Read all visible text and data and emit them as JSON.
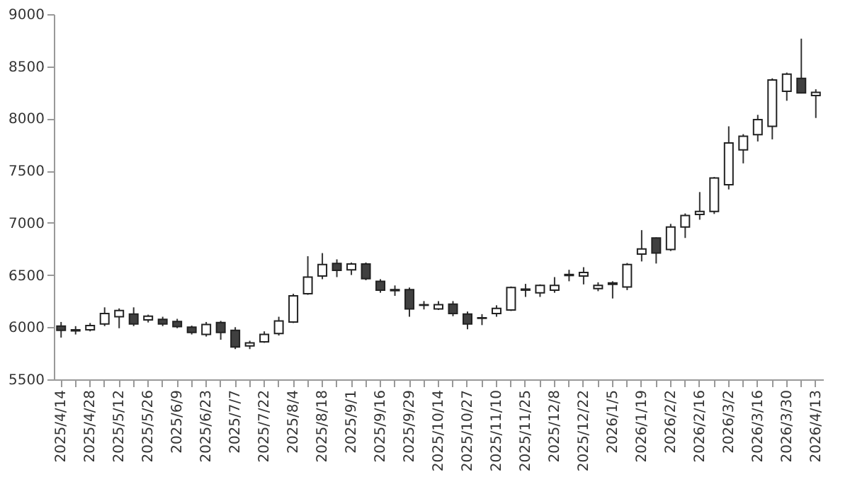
{
  "chart_data": {
    "type": "candlestick",
    "categories": [
      "2025/4/14",
      null,
      "2025/4/28",
      null,
      "2025/5/12",
      null,
      "2025/5/26",
      null,
      "2025/6/9",
      null,
      "2025/6/23",
      null,
      "2025/7/7",
      null,
      "2025/7/22",
      null,
      "2025/8/4",
      null,
      "2025/8/18",
      null,
      "2025/9/1",
      null,
      "2025/9/16",
      null,
      "2025/9/29",
      null,
      "2025/10/14",
      null,
      "2025/10/27",
      null,
      "2025/11/10",
      null,
      "2025/11/25",
      null,
      "2025/12/8",
      null,
      "2025/12/22",
      null,
      "2026/1/5",
      null,
      "2026/1/19",
      null,
      "2026/2/2",
      null,
      "2026/2/16",
      null,
      "2026/3/2",
      null,
      "2026/3/16",
      null,
      "2026/3/30",
      null,
      "2026/4/13"
    ],
    "ohlc": [
      [
        6010,
        6050,
        5900,
        5970
      ],
      [
        5975,
        6010,
        5930,
        5965
      ],
      [
        5975,
        6040,
        5960,
        6015
      ],
      [
        6030,
        6190,
        6010,
        6130
      ],
      [
        6100,
        6180,
        5990,
        6160
      ],
      [
        6125,
        6190,
        6010,
        6030
      ],
      [
        6070,
        6120,
        6045,
        6105
      ],
      [
        6075,
        6100,
        6010,
        6030
      ],
      [
        6055,
        6080,
        5990,
        6005
      ],
      [
        6000,
        6015,
        5930,
        5950
      ],
      [
        5930,
        6050,
        5910,
        6025
      ],
      [
        6045,
        6060,
        5880,
        5950
      ],
      [
        5970,
        6000,
        5790,
        5810
      ],
      [
        5820,
        5870,
        5790,
        5850
      ],
      [
        5860,
        5960,
        5850,
        5930
      ],
      [
        5940,
        6100,
        5920,
        6060
      ],
      [
        6050,
        6320,
        6040,
        6300
      ],
      [
        6320,
        6680,
        6310,
        6480
      ],
      [
        6490,
        6710,
        6460,
        6600
      ],
      [
        6610,
        6650,
        6480,
        6545
      ],
      [
        6550,
        6620,
        6500,
        6605
      ],
      [
        6605,
        6620,
        6450,
        6465
      ],
      [
        6440,
        6460,
        6330,
        6355
      ],
      [
        6360,
        6400,
        6300,
        6350
      ],
      [
        6360,
        6380,
        6100,
        6175
      ],
      [
        6215,
        6250,
        6170,
        6210
      ],
      [
        6175,
        6250,
        6165,
        6215
      ],
      [
        6220,
        6250,
        6105,
        6130
      ],
      [
        6125,
        6150,
        5980,
        6030
      ],
      [
        6090,
        6125,
        6020,
        6085
      ],
      [
        6130,
        6210,
        6100,
        6180
      ],
      [
        6165,
        6390,
        6155,
        6380
      ],
      [
        6355,
        6415,
        6290,
        6365
      ],
      [
        6330,
        6410,
        6290,
        6400
      ],
      [
        6355,
        6480,
        6330,
        6400
      ],
      [
        6495,
        6550,
        6440,
        6505
      ],
      [
        6490,
        6575,
        6410,
        6525
      ],
      [
        6370,
        6430,
        6345,
        6400
      ],
      [
        6425,
        6440,
        6275,
        6410
      ],
      [
        6385,
        6615,
        6355,
        6600
      ],
      [
        6700,
        6930,
        6630,
        6750
      ],
      [
        6855,
        6860,
        6610,
        6710
      ],
      [
        6745,
        6990,
        6730,
        6960
      ],
      [
        6960,
        7090,
        6855,
        7070
      ],
      [
        7080,
        7295,
        7030,
        7110
      ],
      [
        7110,
        7440,
        7085,
        7430
      ],
      [
        7365,
        7925,
        7320,
        7765
      ],
      [
        7700,
        7850,
        7570,
        7830
      ],
      [
        7845,
        8035,
        7780,
        7990
      ],
      [
        7925,
        8385,
        7800,
        8370
      ],
      [
        8260,
        8440,
        8170,
        8425
      ],
      [
        8385,
        8765,
        8240,
        8245
      ],
      [
        8220,
        8280,
        8005,
        8250
      ]
    ],
    "colors": [
      "#404040",
      "#404040",
      "#ffffff",
      "#ffffff",
      "#ffffff",
      "#404040",
      "#ffffff",
      "#404040",
      "#404040",
      "#404040",
      "#ffffff",
      "#404040",
      "#404040",
      "#ffffff",
      "#ffffff",
      "#ffffff",
      "#ffffff",
      "#ffffff",
      "#ffffff",
      "#404040",
      "#ffffff",
      "#404040",
      "#404040",
      "#404040",
      "#404040",
      "#404040",
      "#ffffff",
      "#404040",
      "#404040",
      "#404040",
      "#ffffff",
      "#ffffff",
      "#ffffff",
      "#ffffff",
      "#ffffff",
      "#ffffff",
      "#ffffff",
      "#ffffff",
      "#404040",
      "#ffffff",
      "#ffffff",
      "#404040",
      "#ffffff",
      "#ffffff",
      "#ffffff",
      "#ffffff",
      "#ffffff",
      "#ffffff",
      "#ffffff",
      "#ffffff",
      "#ffffff",
      "#404040",
      "#ffffff"
    ],
    "ylim": [
      5500,
      9000
    ],
    "yticks": [
      5500,
      6000,
      6500,
      7000,
      7500,
      8000,
      8500,
      9000
    ],
    "grid": false
  }
}
